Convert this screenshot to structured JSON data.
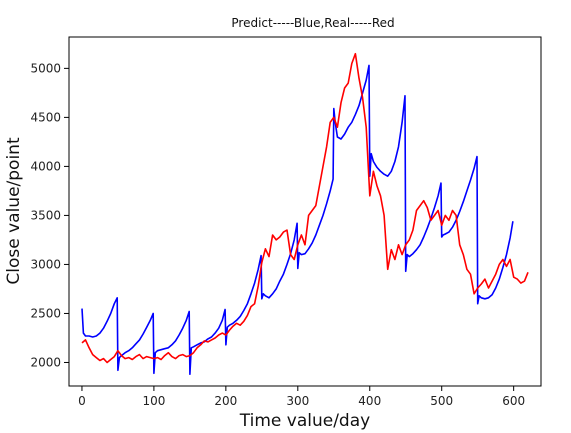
{
  "chart_data": {
    "type": "line",
    "title": "Predict-----Blue,Real-----Red",
    "xlabel": "Time value/day",
    "ylabel": "Close value/point",
    "xlim": [
      -18,
      638
    ],
    "ylim": [
      1760,
      5320
    ],
    "xticks": [
      0,
      100,
      200,
      300,
      400,
      500,
      600
    ],
    "yticks": [
      2000,
      2500,
      3000,
      3500,
      4000,
      4500,
      5000
    ],
    "grid": false,
    "series": [
      {
        "color": "#0000ff",
        "segments": [
          {
            "x": [
              0,
              2,
              5,
              10,
              15,
              20,
              25,
              30,
              35,
              40,
              45,
              49
            ],
            "y": [
              2550,
              2300,
              2270,
              2270,
              2260,
              2270,
              2300,
              2350,
              2420,
              2500,
              2600,
              2660
            ]
          },
          {
            "x": [
              50,
              52,
              55,
              60,
              65,
              70,
              75,
              80,
              85,
              90,
              95,
              99
            ],
            "y": [
              1920,
              2050,
              2070,
              2100,
              2120,
              2150,
              2190,
              2230,
              2290,
              2360,
              2430,
              2500
            ]
          },
          {
            "x": [
              100,
              102,
              105,
              110,
              115,
              120,
              125,
              130,
              135,
              140,
              145,
              149
            ],
            "y": [
              1890,
              2100,
              2120,
              2130,
              2140,
              2150,
              2180,
              2220,
              2280,
              2350,
              2430,
              2520
            ]
          },
          {
            "x": [
              150,
              152,
              155,
              160,
              165,
              170,
              175,
              180,
              185,
              190,
              195,
              199
            ],
            "y": [
              1880,
              2150,
              2160,
              2180,
              2200,
              2210,
              2240,
              2260,
              2300,
              2350,
              2430,
              2540
            ]
          },
          {
            "x": [
              200,
              202,
              205,
              210,
              215,
              220,
              225,
              230,
              235,
              240,
              245,
              249
            ],
            "y": [
              2180,
              2360,
              2380,
              2400,
              2430,
              2470,
              2530,
              2600,
              2700,
              2810,
              2950,
              3090
            ]
          },
          {
            "x": [
              250,
              252,
              255,
              260,
              265,
              270,
              275,
              280,
              285,
              290,
              295,
              299
            ],
            "y": [
              2650,
              2700,
              2680,
              2660,
              2700,
              2750,
              2830,
              2900,
              3000,
              3110,
              3250,
              3420
            ]
          },
          {
            "x": [
              300,
              302,
              305,
              310,
              315,
              320,
              325,
              330,
              335,
              340,
              345,
              349
            ],
            "y": [
              2960,
              3120,
              3100,
              3110,
              3160,
              3220,
              3300,
              3400,
              3500,
              3620,
              3750,
              3870
            ]
          },
          {
            "x": [
              350,
              352,
              355,
              360,
              365,
              370,
              375,
              380,
              385,
              390,
              395,
              399
            ],
            "y": [
              4590,
              4450,
              4300,
              4280,
              4330,
              4400,
              4450,
              4530,
              4620,
              4750,
              4880,
              5030
            ]
          },
          {
            "x": [
              400,
              402,
              405,
              410,
              415,
              420,
              425,
              430,
              435,
              440,
              445,
              449
            ],
            "y": [
              3900,
              4130,
              4050,
              3990,
              3950,
              3920,
              3900,
              3950,
              4050,
              4200,
              4450,
              4720
            ]
          },
          {
            "x": [
              450,
              452,
              455,
              460,
              465,
              470,
              475,
              480,
              485,
              490,
              495,
              499
            ],
            "y": [
              2930,
              3100,
              3080,
              3110,
              3150,
              3200,
              3280,
              3370,
              3470,
              3580,
              3700,
              3830
            ]
          },
          {
            "x": [
              500,
              502,
              505,
              510,
              515,
              520,
              525,
              530,
              535,
              540,
              545,
              549
            ],
            "y": [
              3280,
              3300,
              3310,
              3330,
              3380,
              3450,
              3540,
              3640,
              3750,
              3860,
              3980,
              4100
            ]
          },
          {
            "x": [
              550,
              552,
              555,
              560,
              565,
              570,
              575,
              580,
              585,
              590,
              595,
              599
            ],
            "y": [
              2600,
              2680,
              2660,
              2650,
              2660,
              2690,
              2760,
              2850,
              2970,
              3100,
              3270,
              3440
            ]
          }
        ]
      },
      {
        "color": "#ff0000",
        "x": [
          0,
          5,
          10,
          15,
          20,
          25,
          30,
          35,
          40,
          45,
          50,
          55,
          60,
          65,
          70,
          75,
          80,
          85,
          90,
          95,
          100,
          105,
          110,
          115,
          120,
          125,
          130,
          135,
          140,
          145,
          150,
          155,
          160,
          165,
          170,
          175,
          180,
          185,
          190,
          195,
          200,
          205,
          210,
          215,
          220,
          225,
          230,
          235,
          240,
          245,
          250,
          255,
          260,
          265,
          270,
          275,
          280,
          285,
          290,
          295,
          300,
          305,
          310,
          315,
          320,
          325,
          330,
          335,
          340,
          345,
          350,
          355,
          360,
          365,
          370,
          375,
          380,
          385,
          390,
          395,
          400,
          405,
          410,
          415,
          420,
          425,
          430,
          435,
          440,
          445,
          450,
          455,
          460,
          465,
          470,
          475,
          480,
          485,
          490,
          495,
          500,
          505,
          510,
          515,
          520,
          525,
          530,
          535,
          540,
          545,
          550,
          555,
          560,
          565,
          570,
          575,
          580,
          585,
          590,
          595,
          600,
          605,
          610,
          615,
          620
        ],
        "y": [
          2200,
          2230,
          2150,
          2080,
          2050,
          2020,
          2040,
          2000,
          2030,
          2060,
          2120,
          2070,
          2040,
          2050,
          2030,
          2060,
          2080,
          2040,
          2060,
          2050,
          2040,
          2050,
          2030,
          2070,
          2100,
          2060,
          2040,
          2070,
          2080,
          2060,
          2070,
          2100,
          2150,
          2180,
          2220,
          2210,
          2230,
          2250,
          2280,
          2300,
          2280,
          2330,
          2370,
          2400,
          2380,
          2420,
          2480,
          2570,
          2600,
          2780,
          3020,
          3160,
          3080,
          3300,
          3250,
          3280,
          3330,
          3350,
          3100,
          3050,
          3200,
          3300,
          3200,
          3500,
          3550,
          3600,
          3800,
          4000,
          4200,
          4450,
          4500,
          4400,
          4650,
          4800,
          4850,
          5050,
          5150,
          4900,
          4700,
          4400,
          3700,
          3950,
          3800,
          3700,
          3500,
          2950,
          3150,
          3050,
          3200,
          3100,
          3200,
          3250,
          3350,
          3550,
          3600,
          3650,
          3580,
          3450,
          3500,
          3550,
          3400,
          3500,
          3450,
          3550,
          3500,
          3200,
          3100,
          2950,
          2900,
          2700,
          2760,
          2800,
          2850,
          2760,
          2830,
          2900,
          3000,
          3050,
          2980,
          3050,
          2870,
          2850,
          2810,
          2830,
          2920
        ]
      }
    ]
  }
}
